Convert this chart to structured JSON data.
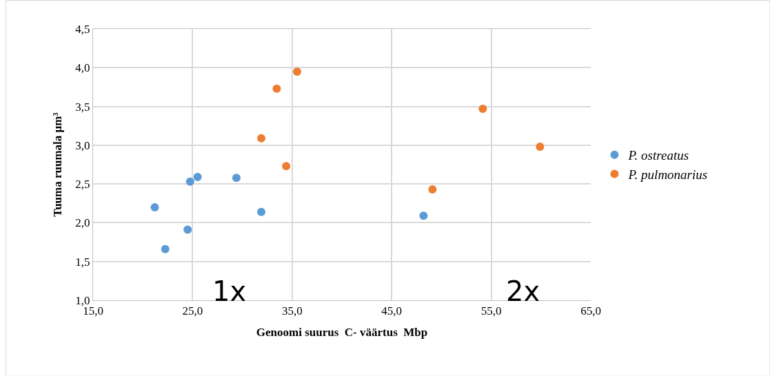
{
  "chart_data": {
    "type": "scatter",
    "xlabel": "Genoomi suurus  C- väärtus  Mbp",
    "ylabel": "Tuuma ruumala µm³",
    "xlim": [
      15,
      65
    ],
    "ylim": [
      1,
      4.5
    ],
    "xticks": [
      {
        "value": 15,
        "label": "15,0"
      },
      {
        "value": 25,
        "label": "25,0"
      },
      {
        "value": 35,
        "label": "35,0"
      },
      {
        "value": 45,
        "label": "45,0"
      },
      {
        "value": 55,
        "label": "55,0"
      },
      {
        "value": 65,
        "label": "65,0"
      }
    ],
    "yticks": [
      {
        "value": 1,
        "label": "1,0"
      },
      {
        "value": 1.5,
        "label": "1,5"
      },
      {
        "value": 2,
        "label": "2,0"
      },
      {
        "value": 2.5,
        "label": "2,5"
      },
      {
        "value": 3,
        "label": "3,0"
      },
      {
        "value": 3.5,
        "label": "3,5"
      },
      {
        "value": 4,
        "label": "4,0"
      },
      {
        "value": 4.5,
        "label": "4,5"
      }
    ],
    "grid": true,
    "legend": "right",
    "marker": "circle",
    "series": [
      {
        "name": "P. ostreatus",
        "color": "#5b9bd5",
        "x": [
          21.2,
          22.25,
          24.5,
          24.75,
          25.5,
          29.4,
          31.9,
          48.2
        ],
        "values": [
          2.2,
          1.66,
          1.91,
          2.53,
          2.59,
          2.58,
          2.14,
          2.09
        ]
      },
      {
        "name": "P. pulmonarius",
        "color": "#ed7d31",
        "x": [
          35.5,
          33.45,
          31.9,
          34.4,
          54.15,
          59.9,
          49.1
        ],
        "values": [
          3.95,
          3.73,
          3.09,
          2.73,
          3.47,
          2.98,
          2.43
        ]
      }
    ],
    "annotations": [
      "1x",
      "2x"
    ]
  }
}
